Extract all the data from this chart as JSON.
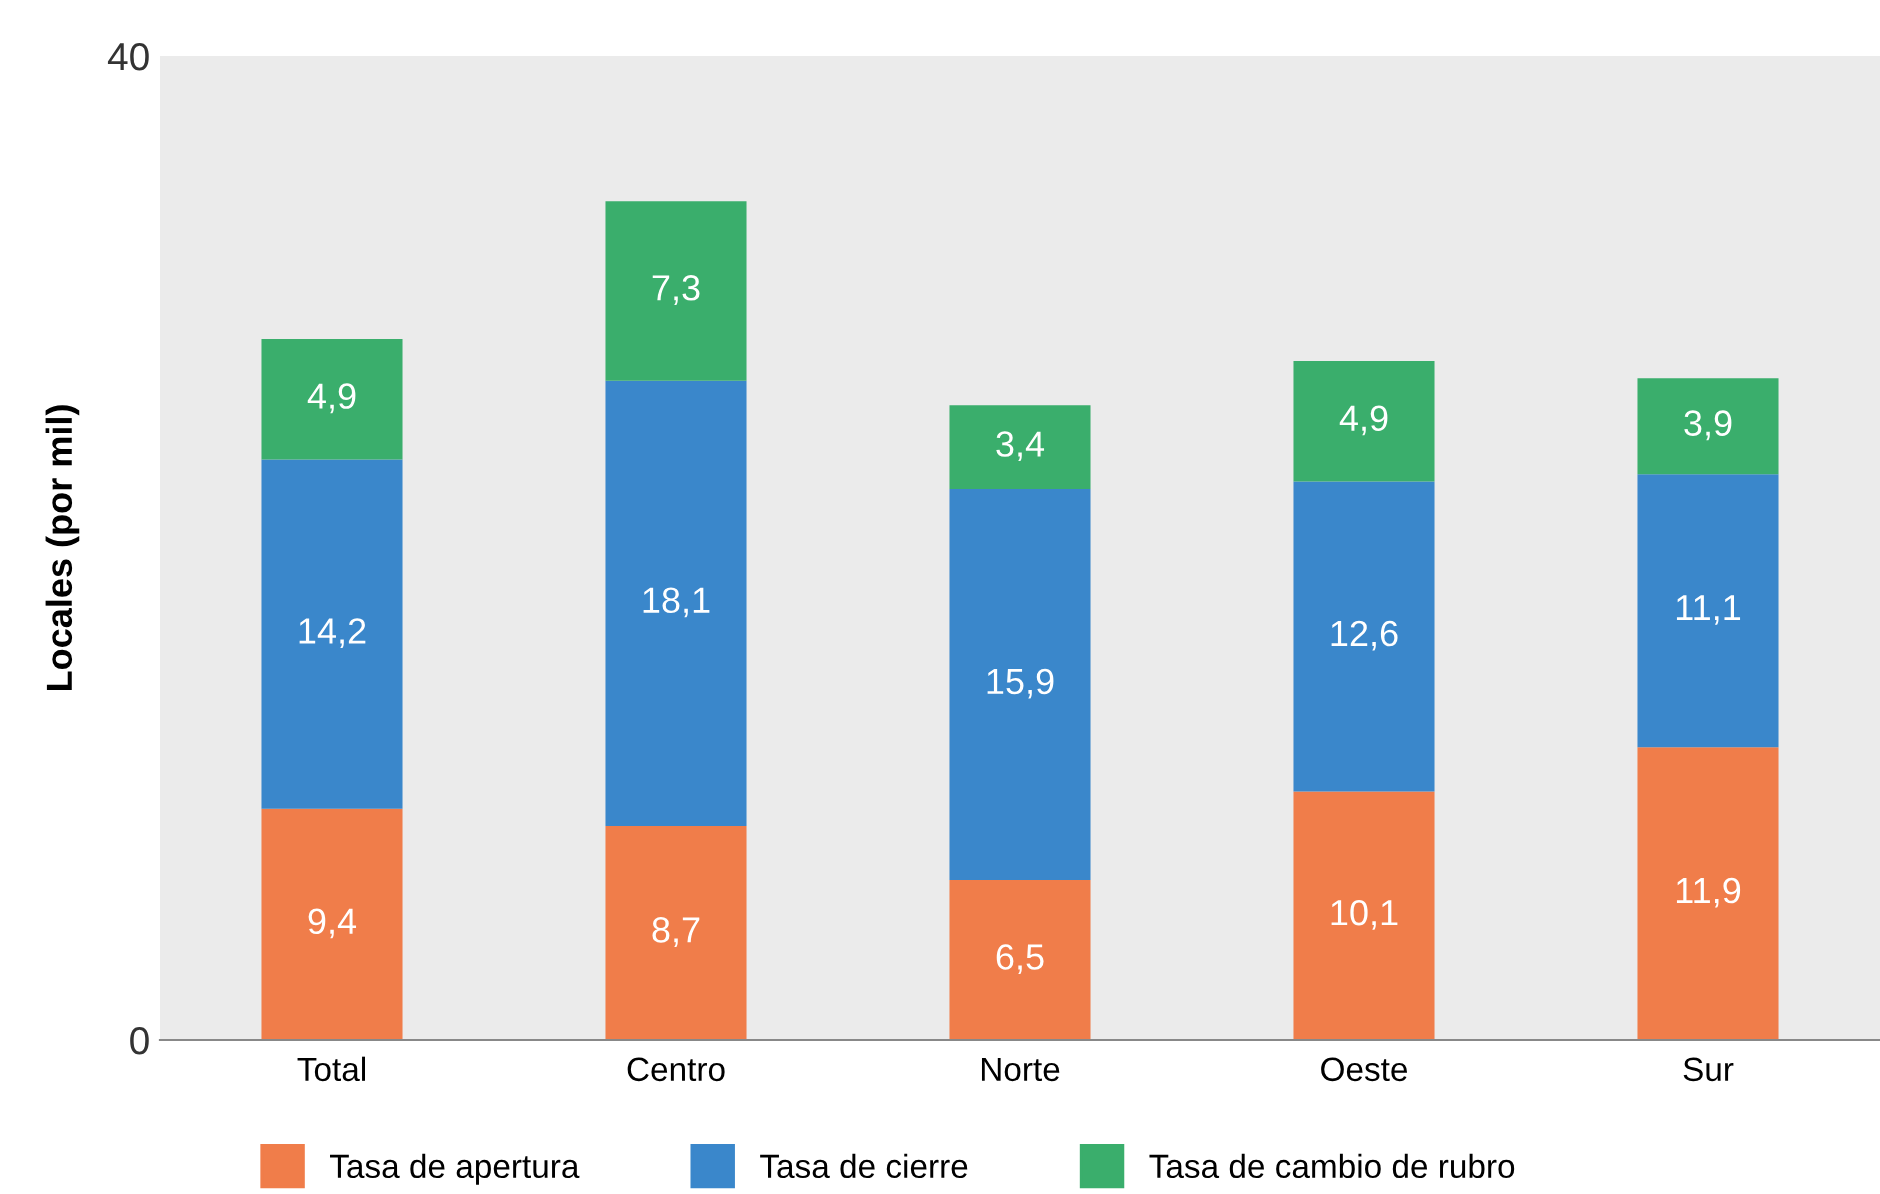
{
  "chart_data": {
    "type": "bar",
    "stacked": true,
    "ylabel": "Locales (por mil)",
    "categories": [
      "Total",
      "Centro",
      "Norte",
      "Oeste",
      "Sur"
    ],
    "series": [
      {
        "name": "Tasa de apertura",
        "color": "#f07d4a",
        "values": [
          9.4,
          8.7,
          6.5,
          10.1,
          11.9
        ],
        "value_labels": [
          "9,4",
          "8,7",
          "6,5",
          "10,1",
          "11,9"
        ]
      },
      {
        "name": "Tasa de cierre",
        "color": "#3a87cb",
        "values": [
          14.2,
          18.1,
          15.9,
          12.6,
          11.1
        ],
        "value_labels": [
          "14,2",
          "18,1",
          "15,9",
          "12,6",
          "11,1"
        ]
      },
      {
        "name": "Tasa de cambio de rubro",
        "color": "#3aae6c",
        "values": [
          4.9,
          7.3,
          3.4,
          4.9,
          3.9
        ],
        "value_labels": [
          "4,9",
          "7,3",
          "3,4",
          "4,9",
          "3,9"
        ]
      }
    ],
    "ylim": [
      0,
      40
    ],
    "yticks": [
      0,
      40
    ],
    "grid": false,
    "legend": "bottom"
  }
}
